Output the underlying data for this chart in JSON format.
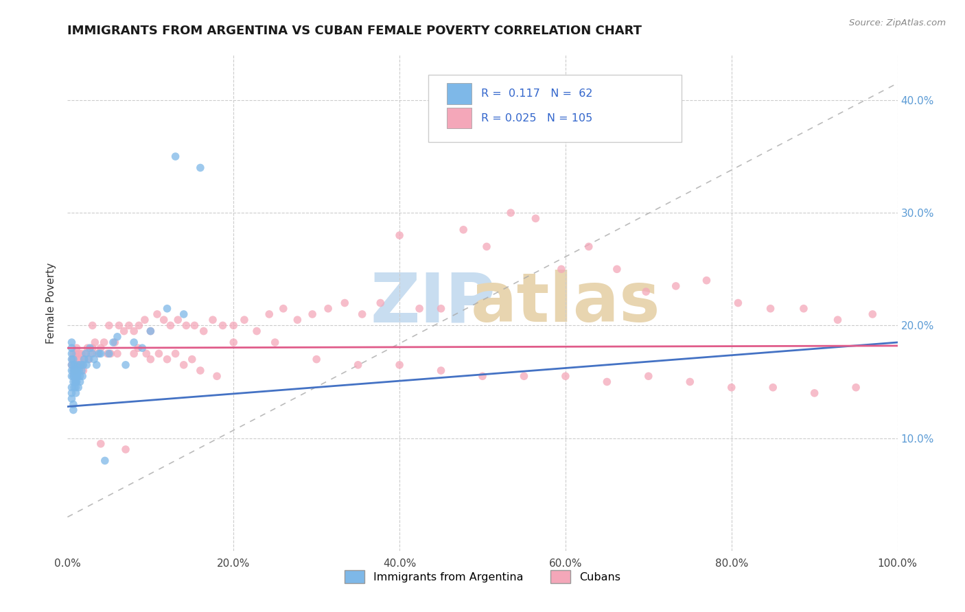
{
  "title": "IMMIGRANTS FROM ARGENTINA VS CUBAN FEMALE POVERTY CORRELATION CHART",
  "source": "Source: ZipAtlas.com",
  "ylabel": "Female Poverty",
  "xlim": [
    0,
    1.0
  ],
  "ylim": [
    0.0,
    0.44
  ],
  "ytick_vals": [
    0.1,
    0.2,
    0.3,
    0.4
  ],
  "ytick_labels": [
    "10.0%",
    "20.0%",
    "30.0%",
    "40.0%"
  ],
  "xtick_vals": [
    0.0,
    0.2,
    0.4,
    0.6,
    0.8,
    1.0
  ],
  "xtick_labels": [
    "0.0%",
    "20.0%",
    "40.0%",
    "60.0%",
    "80.0%",
    "100.0%"
  ],
  "color_argentina": "#7eb8e8",
  "color_cuba": "#f4a7b9",
  "color_line_argentina": "#4472c4",
  "color_line_cuba": "#e05c8a",
  "color_grid": "#cccccc",
  "color_dash": "#aaaaaa",
  "legend_text_color": "#3366cc",
  "argentina_x": [
    0.005,
    0.005,
    0.005,
    0.005,
    0.005,
    0.005,
    0.005,
    0.005,
    0.005,
    0.005,
    0.007,
    0.007,
    0.007,
    0.007,
    0.007,
    0.007,
    0.007,
    0.008,
    0.008,
    0.008,
    0.009,
    0.009,
    0.01,
    0.01,
    0.01,
    0.01,
    0.01,
    0.011,
    0.011,
    0.012,
    0.012,
    0.013,
    0.013,
    0.014,
    0.015,
    0.015,
    0.016,
    0.017,
    0.018,
    0.019,
    0.02,
    0.022,
    0.023,
    0.025,
    0.027,
    0.03,
    0.032,
    0.035,
    0.038,
    0.04,
    0.045,
    0.05,
    0.055,
    0.06,
    0.07,
    0.08,
    0.09,
    0.1,
    0.12,
    0.14,
    0.16,
    0.13
  ],
  "argentina_y": [
    0.155,
    0.16,
    0.165,
    0.17,
    0.175,
    0.18,
    0.185,
    0.145,
    0.14,
    0.135,
    0.15,
    0.155,
    0.16,
    0.165,
    0.17,
    0.13,
    0.125,
    0.155,
    0.16,
    0.145,
    0.15,
    0.165,
    0.16,
    0.155,
    0.15,
    0.145,
    0.14,
    0.155,
    0.15,
    0.16,
    0.155,
    0.165,
    0.145,
    0.16,
    0.155,
    0.15,
    0.165,
    0.16,
    0.155,
    0.165,
    0.17,
    0.175,
    0.165,
    0.17,
    0.18,
    0.175,
    0.17,
    0.165,
    0.175,
    0.175,
    0.08,
    0.175,
    0.185,
    0.19,
    0.165,
    0.185,
    0.18,
    0.195,
    0.215,
    0.21,
    0.34,
    0.35
  ],
  "cuba_x": [
    0.005,
    0.006,
    0.007,
    0.008,
    0.009,
    0.01,
    0.011,
    0.012,
    0.013,
    0.014,
    0.015,
    0.016,
    0.017,
    0.018,
    0.019,
    0.02,
    0.022,
    0.024,
    0.026,
    0.028,
    0.03,
    0.033,
    0.036,
    0.04,
    0.044,
    0.048,
    0.052,
    0.057,
    0.062,
    0.068,
    0.074,
    0.08,
    0.086,
    0.093,
    0.1,
    0.108,
    0.116,
    0.124,
    0.133,
    0.143,
    0.153,
    0.164,
    0.175,
    0.187,
    0.2,
    0.213,
    0.228,
    0.243,
    0.26,
    0.277,
    0.295,
    0.314,
    0.334,
    0.355,
    0.377,
    0.4,
    0.424,
    0.45,
    0.477,
    0.505,
    0.534,
    0.564,
    0.595,
    0.628,
    0.662,
    0.697,
    0.733,
    0.77,
    0.808,
    0.847,
    0.887,
    0.928,
    0.97,
    0.2,
    0.25,
    0.3,
    0.35,
    0.4,
    0.45,
    0.5,
    0.55,
    0.6,
    0.65,
    0.7,
    0.75,
    0.8,
    0.85,
    0.9,
    0.95,
    0.06,
    0.08,
    0.1,
    0.12,
    0.14,
    0.16,
    0.18,
    0.03,
    0.04,
    0.05,
    0.07,
    0.085,
    0.095,
    0.11,
    0.13,
    0.15
  ],
  "cuba_y": [
    0.165,
    0.17,
    0.175,
    0.165,
    0.16,
    0.175,
    0.18,
    0.17,
    0.165,
    0.175,
    0.17,
    0.165,
    0.175,
    0.165,
    0.16,
    0.17,
    0.175,
    0.18,
    0.17,
    0.175,
    0.18,
    0.185,
    0.175,
    0.18,
    0.185,
    0.175,
    0.175,
    0.185,
    0.2,
    0.195,
    0.2,
    0.195,
    0.2,
    0.205,
    0.195,
    0.21,
    0.205,
    0.2,
    0.205,
    0.2,
    0.2,
    0.195,
    0.205,
    0.2,
    0.2,
    0.205,
    0.195,
    0.21,
    0.215,
    0.205,
    0.21,
    0.215,
    0.22,
    0.21,
    0.22,
    0.28,
    0.215,
    0.215,
    0.285,
    0.27,
    0.3,
    0.295,
    0.25,
    0.27,
    0.25,
    0.23,
    0.235,
    0.24,
    0.22,
    0.215,
    0.215,
    0.205,
    0.21,
    0.185,
    0.185,
    0.17,
    0.165,
    0.165,
    0.16,
    0.155,
    0.155,
    0.155,
    0.15,
    0.155,
    0.15,
    0.145,
    0.145,
    0.14,
    0.145,
    0.175,
    0.175,
    0.17,
    0.17,
    0.165,
    0.16,
    0.155,
    0.2,
    0.095,
    0.2,
    0.09,
    0.18,
    0.175,
    0.175,
    0.175,
    0.17
  ],
  "arg_line_x0": 0.0,
  "arg_line_x1": 1.0,
  "arg_line_y0": 0.128,
  "arg_line_y1": 0.185,
  "cuba_line_x0": 0.0,
  "cuba_line_x1": 1.0,
  "cuba_line_y0": 0.18,
  "cuba_line_y1": 0.182,
  "dash_line_x0": 0.0,
  "dash_line_x1": 1.0,
  "dash_line_y0": 0.03,
  "dash_line_y1": 0.415
}
